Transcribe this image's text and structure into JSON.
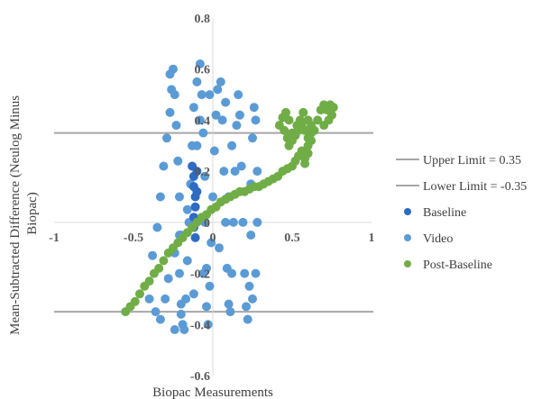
{
  "chart_data": {
    "type": "scatter",
    "title": "",
    "xlabel": "Biopac Measurements",
    "ylabel": "Mean-Subtracted Difference (Neulog Minus Biopac)",
    "xlim": [
      -1,
      1
    ],
    "ylim": [
      -0.6,
      0.8
    ],
    "x_ticks": [
      "-1",
      "-0.5",
      "0",
      "0.5",
      "1"
    ],
    "y_ticks": [
      "-0.6",
      "-0.4",
      "-0.2",
      "0",
      "0.2",
      "0.4",
      "0.6",
      "0.8"
    ],
    "grid": false,
    "legend_position": "right",
    "reference_lines": [
      {
        "name": "Upper Limit = 0.35",
        "y": 0.35,
        "color": "#a6a6a6"
      },
      {
        "name": "Lower Limit = -0.35",
        "y": -0.35,
        "color": "#a6a6a6"
      }
    ],
    "series": [
      {
        "name": "Baseline",
        "color": "#2e6bc2",
        "points": [
          [
            -0.13,
            0.22
          ],
          [
            -0.12,
            0.18
          ],
          [
            -0.12,
            0.14
          ],
          [
            -0.11,
            0.1
          ],
          [
            -0.11,
            0.06
          ],
          [
            -0.12,
            0.02
          ],
          [
            -0.12,
            -0.02
          ],
          [
            -0.11,
            -0.06
          ],
          [
            -0.1,
            0.12
          ],
          [
            -0.1,
            0.2
          ]
        ]
      },
      {
        "name": "Video",
        "color": "#5b9bd5",
        "points": [
          [
            -0.38,
            -0.13
          ],
          [
            -0.35,
            -0.02
          ],
          [
            -0.33,
            0.1
          ],
          [
            -0.31,
            0.22
          ],
          [
            -0.29,
            0.33
          ],
          [
            -0.27,
            0.43
          ],
          [
            -0.26,
            0.52
          ],
          [
            -0.27,
            0.58
          ],
          [
            -0.25,
            0.6
          ],
          [
            -0.24,
            0.5
          ],
          [
            -0.23,
            0.38
          ],
          [
            -0.22,
            0.24
          ],
          [
            -0.21,
            0.1
          ],
          [
            -0.21,
            -0.05
          ],
          [
            -0.21,
            -0.2
          ],
          [
            -0.2,
            -0.32
          ],
          [
            -0.19,
            -0.4
          ],
          [
            -0.18,
            -0.42
          ],
          [
            -0.17,
            -0.3
          ],
          [
            -0.16,
            -0.15
          ],
          [
            -0.15,
            0.0
          ],
          [
            -0.14,
            0.15
          ],
          [
            -0.13,
            0.3
          ],
          [
            -0.12,
            0.45
          ],
          [
            -0.1,
            0.55
          ],
          [
            -0.08,
            0.62
          ],
          [
            -0.07,
            0.5
          ],
          [
            -0.06,
            0.35
          ],
          [
            -0.05,
            0.18
          ],
          [
            -0.05,
            0.0
          ],
          [
            -0.04,
            -0.18
          ],
          [
            -0.04,
            -0.33
          ],
          [
            -0.03,
            -0.4
          ],
          [
            -0.02,
            -0.25
          ],
          [
            -0.01,
            -0.08
          ],
          [
            0.0,
            0.1
          ],
          [
            0.01,
            0.28
          ],
          [
            0.02,
            0.42
          ],
          [
            0.03,
            0.52
          ],
          [
            0.05,
            0.55
          ],
          [
            0.06,
            0.4
          ],
          [
            0.07,
            0.2
          ],
          [
            0.08,
            0.0
          ],
          [
            0.09,
            -0.18
          ],
          [
            0.1,
            -0.32
          ],
          [
            0.11,
            -0.35
          ],
          [
            0.12,
            -0.2
          ],
          [
            0.13,
            0.0
          ],
          [
            0.14,
            0.2
          ],
          [
            0.15,
            0.38
          ],
          [
            0.16,
            0.5
          ],
          [
            0.17,
            0.42
          ],
          [
            0.18,
            0.22
          ],
          [
            0.19,
            0.0
          ],
          [
            0.2,
            -0.2
          ],
          [
            0.21,
            -0.33
          ],
          [
            0.22,
            -0.38
          ],
          [
            0.23,
            -0.25
          ],
          [
            0.24,
            -0.05
          ],
          [
            0.24,
            0.15
          ],
          [
            0.25,
            0.33
          ],
          [
            0.26,
            0.45
          ],
          [
            0.27,
            0.4
          ],
          [
            0.28,
            0.2
          ],
          [
            0.28,
            0.0
          ],
          [
            0.27,
            -0.2
          ],
          [
            0.25,
            -0.3
          ],
          [
            -0.4,
            -0.3
          ],
          [
            -0.36,
            -0.35
          ],
          [
            -0.33,
            -0.38
          ],
          [
            -0.3,
            -0.3
          ],
          [
            -0.28,
            -0.22
          ],
          [
            -0.24,
            -0.12
          ],
          [
            -0.2,
            -0.05
          ],
          [
            -0.16,
            0.05
          ],
          [
            -0.1,
            0.3
          ],
          [
            -0.08,
            0.4
          ],
          [
            -0.02,
            0.5
          ],
          [
            0.08,
            0.47
          ],
          [
            0.12,
            0.3
          ],
          [
            0.1,
            0.1
          ],
          [
            0.04,
            -0.1
          ],
          [
            -0.06,
            -0.2
          ],
          [
            -0.12,
            -0.28
          ],
          [
            -0.2,
            -0.36
          ],
          [
            -0.24,
            -0.42
          ]
        ]
      },
      {
        "name": "Post-Baseline",
        "color": "#70ad47",
        "points": [
          [
            -0.55,
            -0.35
          ],
          [
            -0.52,
            -0.33
          ],
          [
            -0.49,
            -0.31
          ],
          [
            -0.46,
            -0.28
          ],
          [
            -0.43,
            -0.25
          ],
          [
            -0.4,
            -0.23
          ],
          [
            -0.37,
            -0.2
          ],
          [
            -0.34,
            -0.18
          ],
          [
            -0.31,
            -0.15
          ],
          [
            -0.28,
            -0.12
          ],
          [
            -0.25,
            -0.1
          ],
          [
            -0.22,
            -0.08
          ],
          [
            -0.19,
            -0.06
          ],
          [
            -0.16,
            -0.04
          ],
          [
            -0.13,
            -0.02
          ],
          [
            -0.1,
            0.0
          ],
          [
            -0.07,
            0.02
          ],
          [
            -0.04,
            0.03
          ],
          [
            -0.01,
            0.05
          ],
          [
            0.02,
            0.06
          ],
          [
            0.05,
            0.08
          ],
          [
            0.08,
            0.09
          ],
          [
            0.11,
            0.1
          ],
          [
            0.14,
            0.11
          ],
          [
            0.17,
            0.12
          ],
          [
            0.2,
            0.12
          ],
          [
            0.23,
            0.13
          ],
          [
            0.26,
            0.14
          ],
          [
            0.29,
            0.14
          ],
          [
            0.32,
            0.15
          ],
          [
            0.35,
            0.16
          ],
          [
            0.38,
            0.17
          ],
          [
            0.41,
            0.18
          ],
          [
            0.44,
            0.2
          ],
          [
            0.47,
            0.21
          ],
          [
            0.5,
            0.22
          ],
          [
            0.52,
            0.24
          ],
          [
            0.54,
            0.26
          ],
          [
            0.56,
            0.28
          ],
          [
            0.58,
            0.23
          ],
          [
            0.58,
            0.25
          ],
          [
            0.6,
            0.3
          ],
          [
            0.6,
            0.33
          ],
          [
            0.58,
            0.36
          ],
          [
            0.56,
            0.38
          ],
          [
            0.54,
            0.36
          ],
          [
            0.52,
            0.34
          ],
          [
            0.5,
            0.32
          ],
          [
            0.48,
            0.3
          ],
          [
            0.47,
            0.33
          ],
          [
            0.5,
            0.35
          ],
          [
            0.53,
            0.38
          ],
          [
            0.55,
            0.4
          ],
          [
            0.57,
            0.43
          ],
          [
            0.6,
            0.4
          ],
          [
            0.62,
            0.38
          ],
          [
            0.64,
            0.36
          ],
          [
            0.66,
            0.4
          ],
          [
            0.68,
            0.44
          ],
          [
            0.7,
            0.46
          ],
          [
            0.72,
            0.44
          ],
          [
            0.74,
            0.46
          ],
          [
            0.76,
            0.45
          ],
          [
            0.75,
            0.42
          ],
          [
            0.73,
            0.4
          ],
          [
            0.7,
            0.38
          ],
          [
            0.48,
            0.4
          ],
          [
            0.46,
            0.43
          ],
          [
            0.44,
            0.41
          ],
          [
            0.42,
            0.38
          ],
          [
            0.45,
            0.36
          ],
          [
            0.6,
            0.27
          ],
          [
            0.62,
            0.32
          ],
          [
            0.62,
            0.35
          ]
        ]
      }
    ]
  }
}
